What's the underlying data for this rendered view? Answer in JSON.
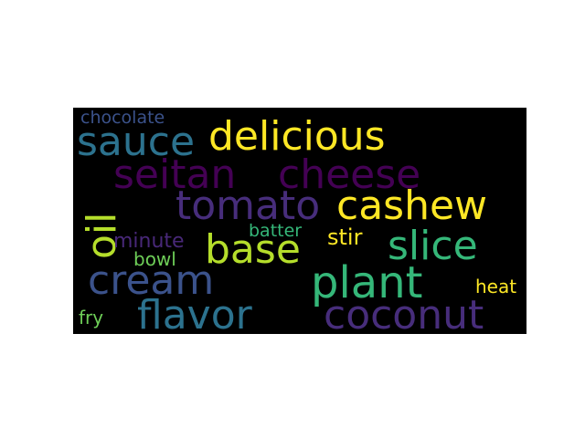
{
  "words": {
    "chocolate": {
      "text": "chocolate",
      "color": "#3b528b"
    },
    "sauce": {
      "text": "sauce",
      "color": "#2c728e"
    },
    "delicious": {
      "text": "delicious",
      "color": "#fde725"
    },
    "seitan": {
      "text": "seitan",
      "color": "#440154"
    },
    "cheese": {
      "text": "cheese",
      "color": "#440154"
    },
    "tomato": {
      "text": "tomato",
      "color": "#472d7b"
    },
    "cashew": {
      "text": "cashew",
      "color": "#fde725"
    },
    "oil": {
      "text": "oil",
      "color": "#b5de2b"
    },
    "batter": {
      "text": "batter",
      "color": "#35b779"
    },
    "minute": {
      "text": "minute",
      "color": "#482878"
    },
    "base": {
      "text": "base",
      "color": "#b5de2b"
    },
    "stir": {
      "text": "stir",
      "color": "#fde725"
    },
    "slice": {
      "text": "slice",
      "color": "#35b779"
    },
    "bowl": {
      "text": "bowl",
      "color": "#6ece58"
    },
    "cream": {
      "text": "cream",
      "color": "#3b528b"
    },
    "plant": {
      "text": "plant",
      "color": "#35b779"
    },
    "heat": {
      "text": "heat",
      "color": "#fde725"
    },
    "fry": {
      "text": "fry",
      "color": "#6ece58"
    },
    "flavor": {
      "text": "flavor",
      "color": "#2c728e"
    },
    "coconut": {
      "text": "coconut",
      "color": "#472d7b"
    }
  }
}
